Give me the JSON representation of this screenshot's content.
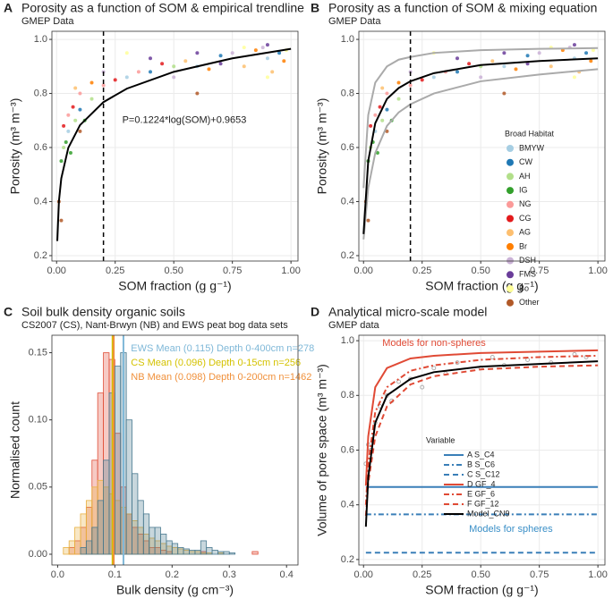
{
  "chart_data": [
    {
      "type": "scatter",
      "panel": "A",
      "title": "Porosity as a function of SOM & empirical trendline",
      "subtitle": "GMEP Data",
      "x_label": "SOM fraction (g g⁻¹)",
      "y_label": "Porosity (m³ m⁻³)",
      "xlim": [
        -0.02,
        1.03
      ],
      "ylim": [
        0.18,
        1.03
      ],
      "xticks": [
        {
          "value": 0,
          "label": "0.00"
        },
        0.25,
        {
          "value": 0.5,
          "label": "0.50"
        },
        0.75,
        {
          "value": 1,
          "label": "1.00"
        }
      ],
      "yticks": [
        0.2,
        0.4,
        0.6,
        0.8,
        {
          "value": 1,
          "label": "1.0"
        }
      ],
      "grid": true,
      "x": [
        0.05,
        0.3,
        0.6,
        0.9,
        0.1,
        0.4,
        0.7,
        0.95,
        0.03,
        0.08,
        0.15,
        0.5,
        0.02,
        0.04,
        0.06,
        0.12,
        0.05,
        0.1,
        0.2,
        0.35,
        0.03,
        0.07,
        0.25,
        0.45,
        0.08,
        0.55,
        0.8,
        0.92,
        0.15,
        0.65,
        0.85,
        0.97,
        0.2,
        0.5,
        0.75,
        0.88,
        0.4,
        0.6,
        0.7,
        0.9,
        0.3,
        0.8,
        0.9,
        0.98,
        0.01,
        0.02,
        0.1,
        0.6
      ],
      "values": [
        0.66,
        0.86,
        0.9,
        0.93,
        0.74,
        0.88,
        0.94,
        0.95,
        0.6,
        0.7,
        0.78,
        0.9,
        0.55,
        0.62,
        0.58,
        0.7,
        0.72,
        0.8,
        0.83,
        0.88,
        0.68,
        0.75,
        0.85,
        0.91,
        0.82,
        0.92,
        0.9,
        0.88,
        0.84,
        0.89,
        0.96,
        0.92,
        0.88,
        0.86,
        0.95,
        0.97,
        0.93,
        0.95,
        0.91,
        0.98,
        0.95,
        0.97,
        0.86,
        0.96,
        0.4,
        0.33,
        0.66,
        0.8
      ],
      "colors": [
        "#a6cee3",
        "#a6cee3",
        "#a6cee3",
        "#a6cee3",
        "#1f78b4",
        "#1f78b4",
        "#1f78b4",
        "#1f78b4",
        "#b2df8a",
        "#b2df8a",
        "#b2df8a",
        "#b2df8a",
        "#33a02c",
        "#33a02c",
        "#33a02c",
        "#33a02c",
        "#fb9a99",
        "#fb9a99",
        "#fb9a99",
        "#fb9a99",
        "#e31a1c",
        "#e31a1c",
        "#e31a1c",
        "#e31a1c",
        "#fdbf6f",
        "#fdbf6f",
        "#fdbf6f",
        "#fdbf6f",
        "#ff7f00",
        "#ff7f00",
        "#ff7f00",
        "#ff7f00",
        "#cab2d6",
        "#cab2d6",
        "#cab2d6",
        "#cab2d6",
        "#6a3d9a",
        "#6a3d9a",
        "#6a3d9a",
        "#6a3d9a",
        "#ffff99",
        "#ffff99",
        "#ffff99",
        "#ffff99",
        "#b15928",
        "#b15928",
        "#b15928",
        "#b15928"
      ],
      "curves": [
        {
          "color": "#000000",
          "x": [
            0.003,
            0.01,
            0.02,
            0.05,
            0.1,
            0.2,
            0.3,
            0.5,
            0.75,
            1.0
          ],
          "values": [
            0.254,
            0.402,
            0.486,
            0.599,
            0.683,
            0.768,
            0.818,
            0.88,
            0.93,
            0.965
          ]
        }
      ],
      "vline": 0.2,
      "annotation": "P=0.1224*log(SOM)+0.9653"
    },
    {
      "type": "scatter",
      "panel": "B",
      "title": "Porosity as a function of SOM & mixing equation",
      "subtitle": "GMEP Data",
      "x_label": "SOM fraction (g g⁻¹)",
      "y_label": "Porosity (m³ m⁻³)",
      "xlim": [
        -0.02,
        1.03
      ],
      "ylim": [
        0.18,
        1.03
      ],
      "xticks": [
        {
          "value": 0,
          "label": "0.00"
        },
        0.25,
        {
          "value": 0.5,
          "label": "0.50"
        },
        0.75,
        {
          "value": 1,
          "label": "1.00"
        }
      ],
      "yticks": [
        0.2,
        0.4,
        0.6,
        0.8,
        {
          "value": 1,
          "label": "1.0"
        }
      ],
      "grid": true,
      "legend_title": "Broad Habitat",
      "legend": "right",
      "series": [
        {
          "name": "BMYW",
          "color": "#a6cee3",
          "x": [
            0.05,
            0.3,
            0.6,
            0.9
          ],
          "values": [
            0.66,
            0.86,
            0.9,
            0.93
          ]
        },
        {
          "name": "CW",
          "color": "#1f78b4",
          "x": [
            0.1,
            0.4,
            0.7,
            0.95
          ],
          "values": [
            0.74,
            0.88,
            0.94,
            0.95
          ]
        },
        {
          "name": "AH",
          "color": "#b2df8a",
          "x": [
            0.03,
            0.08,
            0.15,
            0.5
          ],
          "values": [
            0.6,
            0.7,
            0.78,
            0.9
          ]
        },
        {
          "name": "IG",
          "color": "#33a02c",
          "x": [
            0.02,
            0.04,
            0.06,
            0.12
          ],
          "values": [
            0.55,
            0.62,
            0.58,
            0.7
          ]
        },
        {
          "name": "NG",
          "color": "#fb9a99",
          "x": [
            0.05,
            0.1,
            0.2,
            0.35
          ],
          "values": [
            0.72,
            0.8,
            0.83,
            0.88
          ]
        },
        {
          "name": "CG",
          "color": "#e31a1c",
          "x": [
            0.03,
            0.07,
            0.25,
            0.45
          ],
          "values": [
            0.68,
            0.75,
            0.85,
            0.91
          ]
        },
        {
          "name": "AG",
          "color": "#fdbf6f",
          "x": [
            0.08,
            0.55,
            0.8,
            0.92
          ],
          "values": [
            0.82,
            0.92,
            0.9,
            0.88
          ]
        },
        {
          "name": "Br",
          "color": "#ff7f00",
          "x": [
            0.15,
            0.65,
            0.85,
            0.97
          ],
          "values": [
            0.84,
            0.89,
            0.96,
            0.92
          ]
        },
        {
          "name": "DSH",
          "color": "#cab2d6",
          "x": [
            0.2,
            0.5,
            0.75,
            0.88
          ],
          "values": [
            0.88,
            0.86,
            0.95,
            0.97
          ]
        },
        {
          "name": "FMS",
          "color": "#6a3d9a",
          "x": [
            0.4,
            0.6,
            0.7,
            0.9
          ],
          "values": [
            0.93,
            0.95,
            0.91,
            0.98
          ]
        },
        {
          "name": "Bo",
          "color": "#ffff99",
          "x": [
            0.3,
            0.8,
            0.9,
            0.98
          ],
          "values": [
            0.95,
            0.97,
            0.86,
            0.96
          ]
        },
        {
          "name": "Other",
          "color": "#b15928",
          "x": [
            0.01,
            0.02,
            0.1,
            0.6
          ],
          "values": [
            0.4,
            0.33,
            0.66,
            0.8
          ]
        }
      ],
      "curves": [
        {
          "color": "#aaaaaa",
          "x": [
            0,
            0.02,
            0.05,
            0.1,
            0.15,
            0.2,
            0.3,
            0.5,
            0.75,
            1.0
          ],
          "values": [
            0.45,
            0.72,
            0.84,
            0.9,
            0.925,
            0.935,
            0.95,
            0.96,
            0.965,
            0.968
          ]
        },
        {
          "color": "#aaaaaa",
          "x": [
            0,
            0.02,
            0.05,
            0.1,
            0.15,
            0.2,
            0.3,
            0.5,
            0.75,
            1.0
          ],
          "values": [
            0.26,
            0.45,
            0.58,
            0.68,
            0.73,
            0.76,
            0.8,
            0.845,
            0.87,
            0.89
          ]
        },
        {
          "color": "#000000",
          "x": [
            0,
            0.02,
            0.05,
            0.1,
            0.15,
            0.2,
            0.3,
            0.5,
            0.75,
            1.0
          ],
          "values": [
            0.28,
            0.55,
            0.69,
            0.78,
            0.82,
            0.845,
            0.875,
            0.905,
            0.92,
            0.93
          ]
        }
      ],
      "vline": 0.2
    },
    {
      "type": "histogram",
      "panel": "C",
      "title": "Soil bulk density organic soils",
      "subtitle": "CS2007 (CS), Nant-Brwyn (NB) and EWS peat bog data sets",
      "x_label": "Bulk density (g cm⁻³)",
      "y_label": "Normalised count",
      "xlim": [
        -0.01,
        0.42
      ],
      "ylim": [
        -0.008,
        0.163
      ],
      "xticks": [
        {
          "value": 0,
          "label": "0.0"
        },
        0.1,
        0.2,
        0.3,
        0.4
      ],
      "yticks": [
        {
          "value": 0,
          "label": "0.00"
        },
        0.05,
        {
          "value": 0.1,
          "label": "0.10"
        },
        0.15
      ],
      "grid": false,
      "bins": [
        0,
        0.01,
        0.02,
        0.03,
        0.04,
        0.05,
        0.06,
        0.07,
        0.08,
        0.09,
        0.1,
        0.11,
        0.12,
        0.13,
        0.14,
        0.15,
        0.16,
        0.17,
        0.18,
        0.19,
        0.2,
        0.21,
        0.22,
        0.23,
        0.24,
        0.25,
        0.26,
        0.27,
        0.28,
        0.29,
        0.3,
        0.31,
        0.32,
        0.33,
        0.34,
        0.35,
        0.36,
        0.37,
        0.38,
        0.39,
        0.4
      ],
      "series": [
        {
          "color": "#e0503a",
          "values": [
            0,
            0,
            0.005,
            0.01,
            0.02,
            0.035,
            0.07,
            0.12,
            0.15,
            0.145,
            0.09,
            0.05,
            0.03,
            0.02,
            0.015,
            0.01,
            0.005,
            0.005,
            0.003,
            0.002,
            0,
            0,
            0,
            0,
            0,
            0.002,
            0,
            0,
            0,
            0,
            0,
            0,
            0,
            0,
            0.002,
            0,
            0,
            0,
            0,
            0
          ]
        },
        {
          "color": "#e8b040",
          "values": [
            0,
            0.005,
            0.01,
            0.02,
            0.03,
            0.04,
            0.05,
            0.055,
            0.05,
            0.045,
            0.04,
            0.035,
            0.03,
            0.025,
            0.02,
            0.015,
            0.012,
            0.01,
            0.008,
            0.006,
            0.005,
            0.004,
            0.003,
            0.002,
            0.002,
            0.001,
            0.001,
            0,
            0.001,
            0,
            0,
            0,
            0,
            0,
            0,
            0,
            0,
            0,
            0,
            0
          ]
        },
        {
          "color": "#4a7a90",
          "values": [
            0,
            0,
            0,
            0,
            0.005,
            0.01,
            0.02,
            0.04,
            0.07,
            0.12,
            0.14,
            0.15,
            0.1,
            0.06,
            0.04,
            0.03,
            0.02,
            0.02,
            0.015,
            0.01,
            0.008,
            0.005,
            0.004,
            0.003,
            0.003,
            0.01,
            0.005,
            0.003,
            0.002,
            0.002,
            0.001,
            0,
            0,
            0,
            0,
            0,
            0,
            0,
            0,
            0
          ]
        }
      ],
      "means": [
        {
          "label": "EWS Mean (0.115) Depth 0-400cm n=278",
          "value": 0.115,
          "color": "#7fb8d8"
        },
        {
          "label": "CS Mean (0.096) Depth 0-15cm n=256",
          "value": 0.096,
          "color": "#d4c200"
        },
        {
          "label": "NB Mean (0.098) Depth 0-200cm n=1462",
          "value": 0.098,
          "color": "#f0903a"
        }
      ]
    },
    {
      "type": "line",
      "panel": "D",
      "title": "Analytical micro-scale model",
      "subtitle": "GMEP data",
      "x_label": "SOM fraction (g g⁻¹)",
      "y_label": "Volume of pore space (m³ m⁻³)",
      "xlim": [
        -0.02,
        1.03
      ],
      "ylim": [
        0.18,
        1.02
      ],
      "xticks": [
        {
          "value": 0,
          "label": "0.00"
        },
        0.25,
        {
          "value": 0.5,
          "label": "0.50"
        },
        0.75,
        {
          "value": 1,
          "label": "1.00"
        }
      ],
      "yticks": [
        0.2,
        0.4,
        0.6,
        0.8,
        {
          "value": 1,
          "label": "1.0"
        }
      ],
      "grid": true,
      "legend_title": "Variable",
      "legend": "right",
      "points": {
        "color": "#b0b0b0",
        "x": [
          0.01,
          0.02,
          0.03,
          0.05,
          0.07,
          0.1,
          0.12,
          0.15,
          0.2,
          0.25,
          0.3,
          0.35,
          0.4,
          0.5,
          0.55,
          0.6,
          0.7,
          0.8,
          0.9,
          0.95
        ],
        "values": [
          0.55,
          0.62,
          0.6,
          0.7,
          0.76,
          0.8,
          0.78,
          0.85,
          0.86,
          0.83,
          0.9,
          0.88,
          0.92,
          0.9,
          0.94,
          0.91,
          0.93,
          0.92,
          0.95,
          0.94
        ]
      },
      "series": [
        {
          "name": "A S_C4",
          "color": "#3a7fb8",
          "dash": "solid",
          "x": [
            0.01,
            1.0
          ],
          "values": [
            0.465,
            0.465
          ]
        },
        {
          "name": "B S_C6",
          "color": "#3a7fb8",
          "dash": "dashdot",
          "x": [
            0.01,
            1.0
          ],
          "values": [
            0.365,
            0.365
          ]
        },
        {
          "name": "C S_C12",
          "color": "#3a7fb8",
          "dash": "dash",
          "x": [
            0.01,
            1.0
          ],
          "values": [
            0.225,
            0.225
          ]
        },
        {
          "name": "D GF_4",
          "color": "#e04a35",
          "dash": "solid",
          "x": [
            0.01,
            0.02,
            0.05,
            0.1,
            0.2,
            0.3,
            0.5,
            0.75,
            1.0
          ],
          "values": [
            0.47,
            0.65,
            0.83,
            0.9,
            0.935,
            0.945,
            0.955,
            0.96,
            0.965
          ]
        },
        {
          "name": "E GF_6",
          "color": "#e04a35",
          "dash": "dashdot",
          "x": [
            0.01,
            0.02,
            0.05,
            0.1,
            0.2,
            0.3,
            0.5,
            0.75,
            1.0
          ],
          "values": [
            0.4,
            0.55,
            0.74,
            0.83,
            0.89,
            0.91,
            0.93,
            0.94,
            0.945
          ]
        },
        {
          "name": "F GF_12",
          "color": "#e04a35",
          "dash": "dash",
          "x": [
            0.01,
            0.02,
            0.05,
            0.1,
            0.2,
            0.3,
            0.5,
            0.75,
            1.0
          ],
          "values": [
            0.36,
            0.48,
            0.65,
            0.76,
            0.84,
            0.87,
            0.895,
            0.905,
            0.91
          ]
        },
        {
          "name": "Model_CN9",
          "color": "#000000",
          "dash": "solid",
          "x": [
            0.01,
            0.02,
            0.05,
            0.1,
            0.2,
            0.3,
            0.5,
            0.75,
            1.0
          ],
          "values": [
            0.32,
            0.5,
            0.7,
            0.8,
            0.86,
            0.885,
            0.905,
            0.915,
            0.925
          ]
        }
      ],
      "annotations": [
        {
          "text": "Models for non-spheres",
          "color": "#e04a35"
        },
        {
          "text": "Models for spheres",
          "color": "#3a8fc7"
        }
      ]
    }
  ]
}
